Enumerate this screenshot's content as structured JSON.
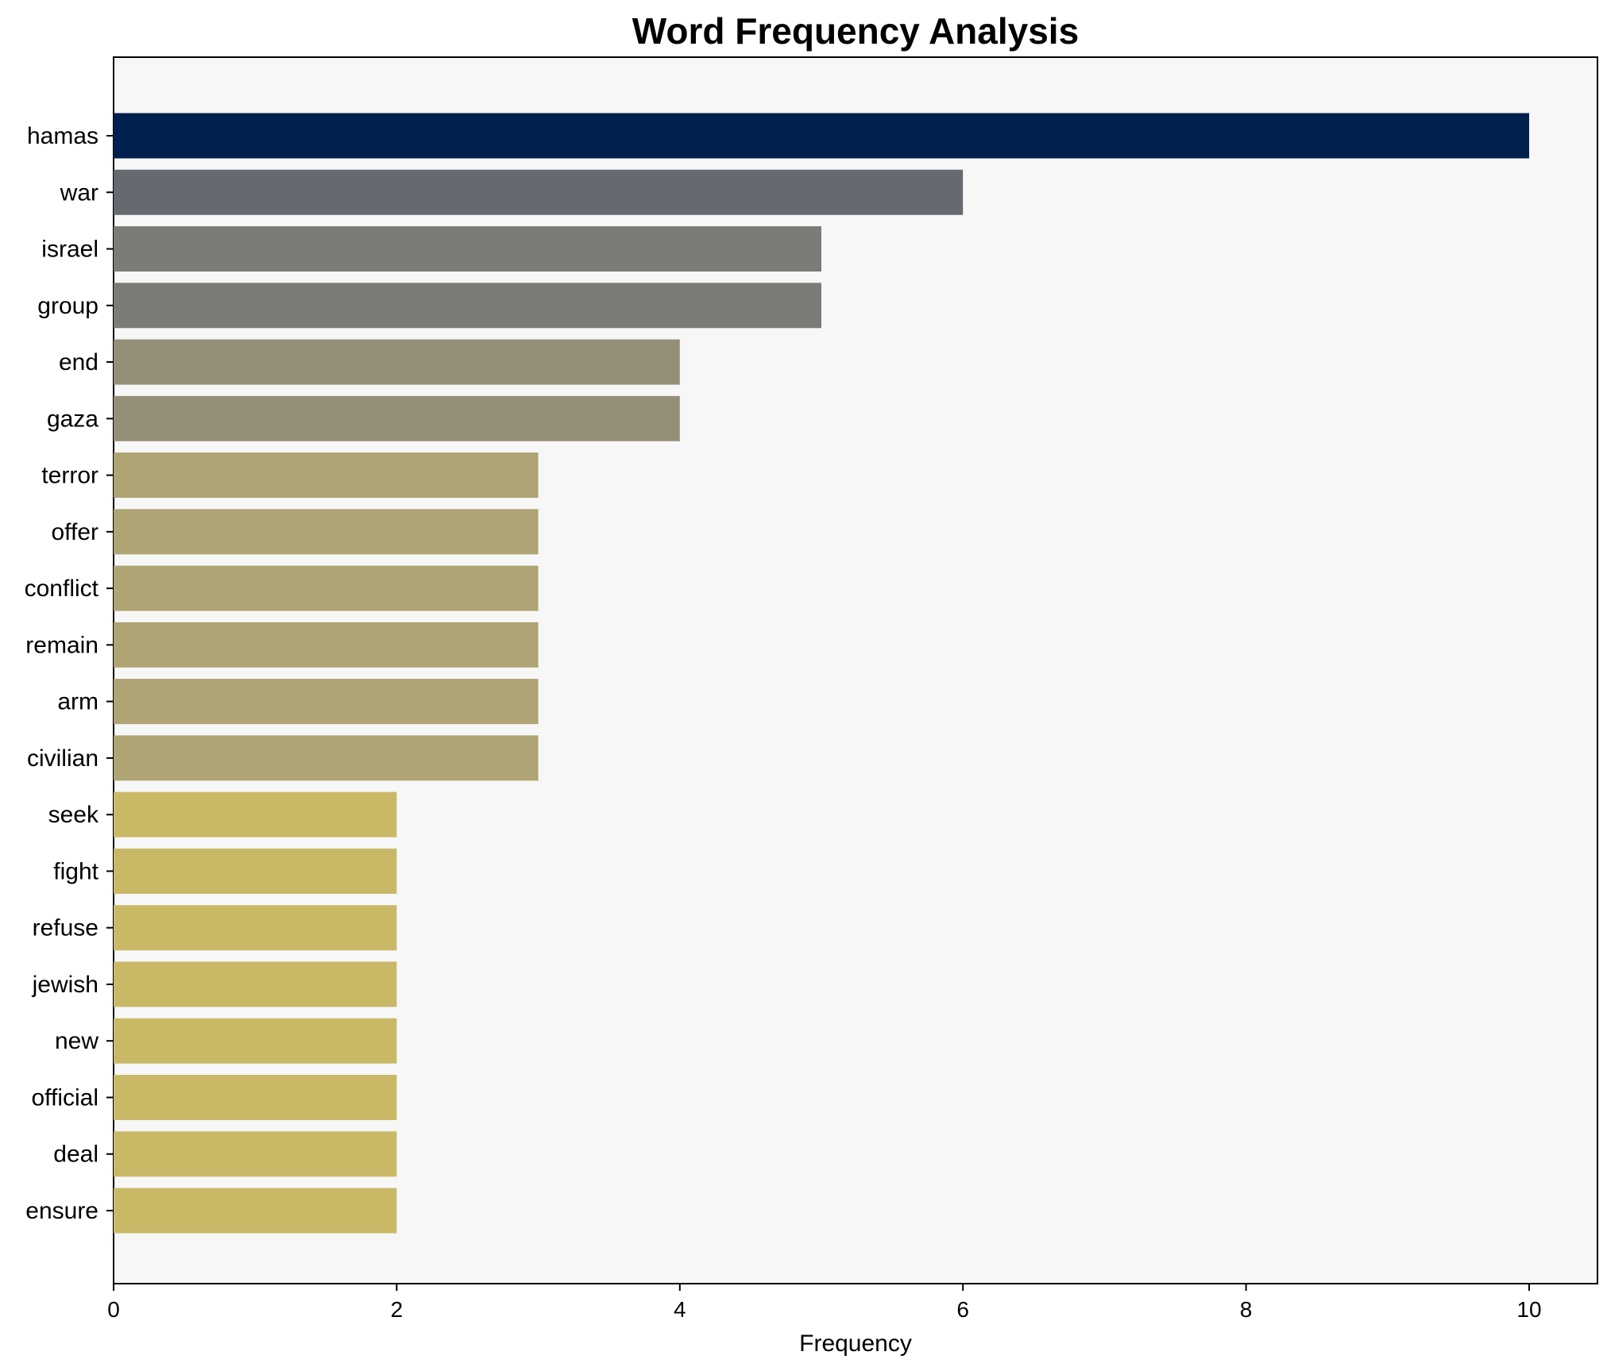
{
  "chart_data": {
    "type": "bar",
    "orientation": "horizontal",
    "title": "Word Frequency Analysis",
    "xlabel": "Frequency",
    "ylabel": "",
    "xlim": [
      0,
      10.5
    ],
    "xticks": [
      0,
      2,
      4,
      6,
      8,
      10
    ],
    "grid": false,
    "background_color": "#f7f7f7",
    "categories": [
      "hamas",
      "war",
      "israel",
      "group",
      "end",
      "gaza",
      "terror",
      "offer",
      "conflict",
      "remain",
      "arm",
      "civilian",
      "seek",
      "fight",
      "refuse",
      "jewish",
      "new",
      "official",
      "deal",
      "ensure"
    ],
    "values": [
      10,
      6,
      5,
      5,
      4,
      4,
      3,
      3,
      3,
      3,
      3,
      3,
      2,
      2,
      2,
      2,
      2,
      2,
      2,
      2
    ],
    "colors": [
      "#00204d",
      "#666970",
      "#7c7b78",
      "#7c7b78",
      "#958f78",
      "#958f78",
      "#afa473",
      "#afa473",
      "#afa473",
      "#afa473",
      "#afa473",
      "#afa473",
      "#c9b967",
      "#c9b967",
      "#c9b967",
      "#c9b967",
      "#c9b967",
      "#c9b967",
      "#c9b967",
      "#c9b967"
    ]
  }
}
